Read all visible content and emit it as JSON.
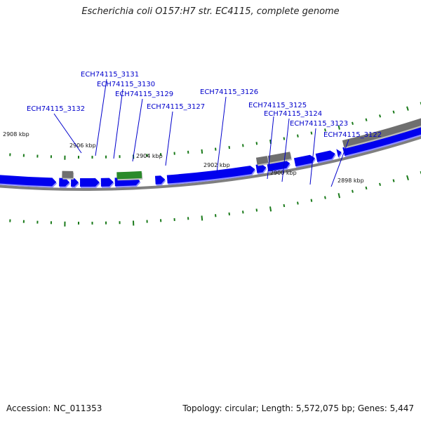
{
  "title": "Escherichia coli O157:H7 str. EC4115, complete genome",
  "footer": {
    "accession": "Accession: NC_011353",
    "summary": "Topology: circular; Length: 5,572,075 bp; Genes: 5,447"
  },
  "colors": {
    "forward_gene": "#0000ee",
    "gene_shadow": "#8f8fff",
    "other_feature": "#6f6f6f",
    "rna_feature": "#2a8a2a",
    "tick": "#1a7a1a",
    "backbone": "#7f7f7f",
    "label": "#0000cc"
  },
  "ruler": {
    "unit": "kbp",
    "ticks": [
      {
        "label": "2908 kbp"
      },
      {
        "label": "2906 kbp"
      },
      {
        "label": "2904 kbp"
      },
      {
        "label": "2902 kbp"
      },
      {
        "label": "2900 kbp"
      },
      {
        "label": "2898 kbp"
      }
    ]
  },
  "gene_labels": [
    {
      "label": "ECH74115_3132"
    },
    {
      "label": "ECH74115_3131"
    },
    {
      "label": "ECH74115_3130"
    },
    {
      "label": "ECH74115_3129"
    },
    {
      "label": "ECH74115_3127"
    },
    {
      "label": "ECH74115_3126"
    },
    {
      "label": "ECH74115_3125"
    },
    {
      "label": "ECH74115_3124"
    },
    {
      "label": "ECH74115_3123"
    },
    {
      "label": "ECH74115_3122"
    }
  ]
}
